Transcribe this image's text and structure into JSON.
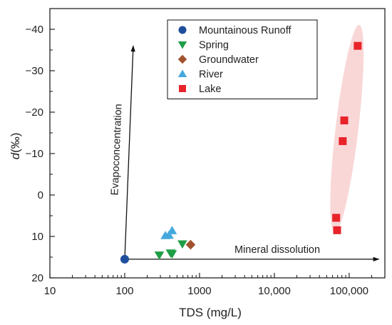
{
  "chart_data": {
    "type": "scatter",
    "xlabel": "TDS (mg/L)",
    "ylabel_main": "d",
    "ylabel_unit": "(‰)",
    "x_scale": "log",
    "xlim": [
      10,
      300000
    ],
    "ylim": [
      20,
      -45
    ],
    "y_inverted": true,
    "x_ticks": [
      {
        "value": 10,
        "label": "10"
      },
      {
        "value": 100,
        "label": "100"
      },
      {
        "value": 1000,
        "label": "1000"
      },
      {
        "value": 10000,
        "label": "10,000"
      },
      {
        "value": 100000,
        "label": "100,000"
      }
    ],
    "y_ticks": [
      {
        "value": -40,
        "label": "−40"
      },
      {
        "value": -30,
        "label": "−30"
      },
      {
        "value": -20,
        "label": "−20"
      },
      {
        "value": -10,
        "label": "−10"
      },
      {
        "value": 0,
        "label": "0"
      },
      {
        "value": 10,
        "label": "10"
      },
      {
        "value": 20,
        "label": "20"
      }
    ],
    "grid": false,
    "legend_position": "top-center",
    "series": [
      {
        "name": "Mountainous Runoff",
        "marker": "circle",
        "color": "#1f4e9c",
        "points": [
          {
            "x": 100,
            "y": 15.5
          }
        ]
      },
      {
        "name": "Spring",
        "marker": "triangle-down",
        "color": "#1e9e46",
        "points": [
          {
            "x": 290,
            "y": 14.5
          },
          {
            "x": 410,
            "y": 14.0
          },
          {
            "x": 430,
            "y": 14.2
          },
          {
            "x": 590,
            "y": 11.8
          }
        ]
      },
      {
        "name": "Groundwater",
        "marker": "diamond",
        "color": "#a0522d",
        "points": [
          {
            "x": 760,
            "y": 12.0
          }
        ]
      },
      {
        "name": "River",
        "marker": "triangle-up",
        "color": "#45a8dd",
        "points": [
          {
            "x": 350,
            "y": 9.8
          },
          {
            "x": 390,
            "y": 9.7
          },
          {
            "x": 430,
            "y": 8.6
          }
        ]
      },
      {
        "name": "Lake",
        "marker": "square",
        "color": "#e8232a",
        "points": [
          {
            "x": 67000,
            "y": 5.5
          },
          {
            "x": 69000,
            "y": 8.5
          },
          {
            "x": 82000,
            "y": -13
          },
          {
            "x": 86000,
            "y": -18
          },
          {
            "x": 130000,
            "y": -36
          }
        ]
      }
    ],
    "lake_ellipse": {
      "color": "#f4b6b6",
      "from": {
        "x": 67000,
        "y": 6
      },
      "to": {
        "x": 130000,
        "y": -38
      }
    },
    "annotations": [
      {
        "text": "Evapoconcentration",
        "from": {
          "x": 100,
          "y": 15.5
        },
        "to": {
          "x": 130,
          "y": -36
        }
      },
      {
        "text": "Mineral dissolution",
        "from": {
          "x": 100,
          "y": 15.5
        },
        "to": {
          "x": 250000,
          "y": 15.5
        }
      }
    ]
  }
}
